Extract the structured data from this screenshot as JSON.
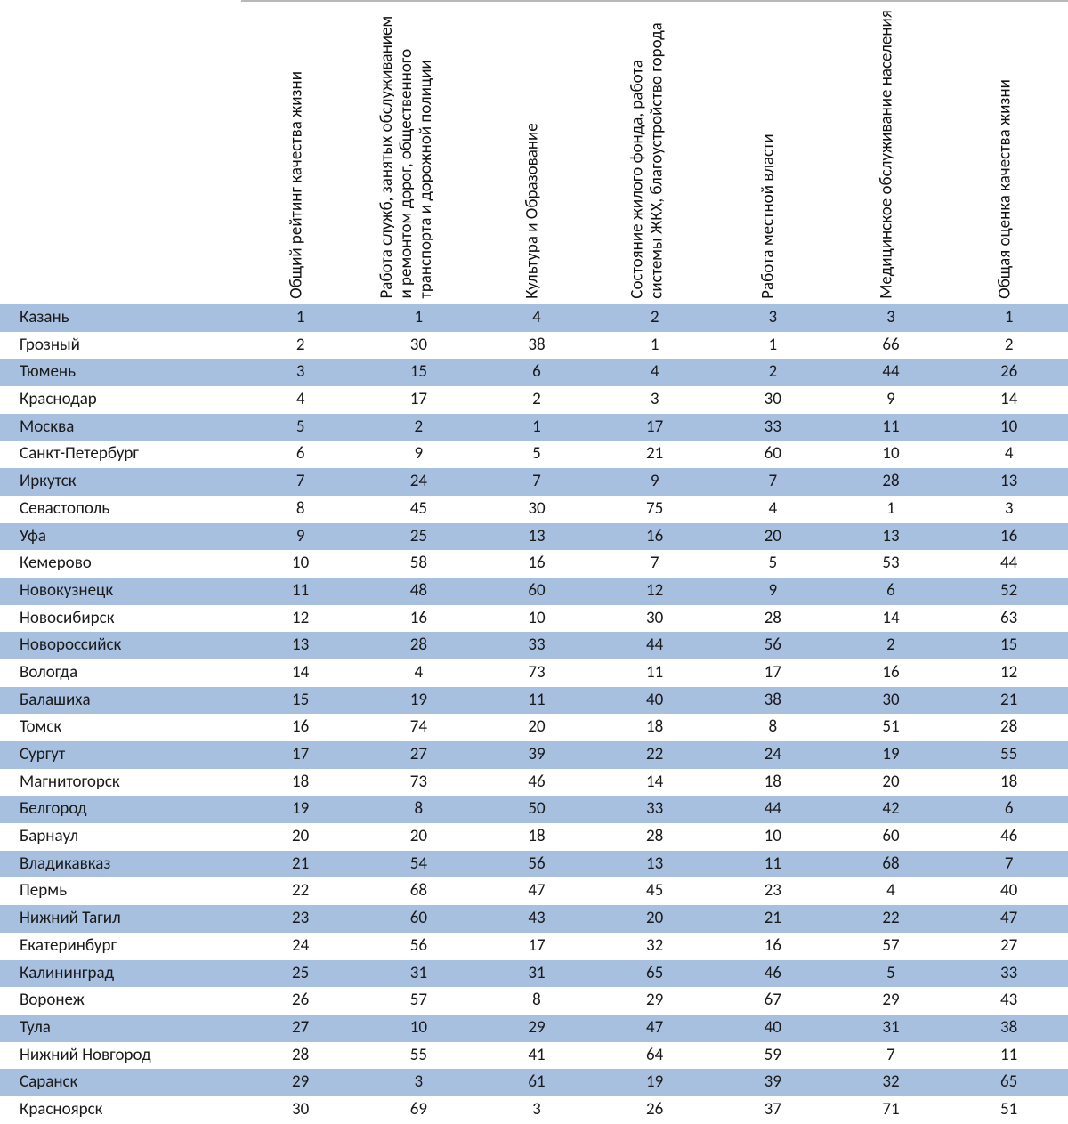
{
  "table": {
    "stripe_color_a": "#a8c0e0",
    "stripe_color_b": "#ffffff",
    "text_color": "#1a1a1a",
    "font_size_pt": 14,
    "columns": [
      "Общий рейтинг качества жизни",
      "Работа служб, занятых обслуживанием и ремонтом дорог, общественного транспорта и дорожной полиции",
      "Культура и Образование",
      "Состояние жилого фонда, работа системы ЖКХ, благоустройство города",
      "Работа местной власти",
      "Медицинское обслуживание населения",
      "Общая оценка качества жизни"
    ],
    "rows": [
      {
        "name": "Казань",
        "values": [
          1,
          1,
          4,
          2,
          3,
          3,
          1
        ]
      },
      {
        "name": "Грозный",
        "values": [
          2,
          30,
          38,
          1,
          1,
          66,
          2
        ]
      },
      {
        "name": "Тюмень",
        "values": [
          3,
          15,
          6,
          4,
          2,
          44,
          26
        ]
      },
      {
        "name": "Краснодар",
        "values": [
          4,
          17,
          2,
          3,
          30,
          9,
          14
        ]
      },
      {
        "name": "Москва",
        "values": [
          5,
          2,
          1,
          17,
          33,
          11,
          10
        ]
      },
      {
        "name": "Санкт-Петербург",
        "values": [
          6,
          9,
          5,
          21,
          60,
          10,
          4
        ]
      },
      {
        "name": "Иркутск",
        "values": [
          7,
          24,
          7,
          9,
          7,
          28,
          13
        ]
      },
      {
        "name": "Севастополь",
        "values": [
          8,
          45,
          30,
          75,
          4,
          1,
          3
        ]
      },
      {
        "name": "Уфа",
        "values": [
          9,
          25,
          13,
          16,
          20,
          13,
          16
        ]
      },
      {
        "name": "Кемерово",
        "values": [
          10,
          58,
          16,
          7,
          5,
          53,
          44
        ]
      },
      {
        "name": "Новокузнецк",
        "values": [
          11,
          48,
          60,
          12,
          9,
          6,
          52
        ]
      },
      {
        "name": "Новосибирск",
        "values": [
          12,
          16,
          10,
          30,
          28,
          14,
          63
        ]
      },
      {
        "name": "Новороссийск",
        "values": [
          13,
          28,
          33,
          44,
          56,
          2,
          15
        ]
      },
      {
        "name": "Вологда",
        "values": [
          14,
          4,
          73,
          11,
          17,
          16,
          12
        ]
      },
      {
        "name": "Балашиха",
        "values": [
          15,
          19,
          11,
          40,
          38,
          30,
          21
        ]
      },
      {
        "name": "Томск",
        "values": [
          16,
          74,
          20,
          18,
          8,
          51,
          28
        ]
      },
      {
        "name": "Сургут",
        "values": [
          17,
          27,
          39,
          22,
          24,
          19,
          55
        ]
      },
      {
        "name": "Магнитогорск",
        "values": [
          18,
          73,
          46,
          14,
          18,
          20,
          18
        ]
      },
      {
        "name": "Белгород",
        "values": [
          19,
          8,
          50,
          33,
          44,
          42,
          6
        ]
      },
      {
        "name": "Барнаул",
        "values": [
          20,
          20,
          18,
          28,
          10,
          60,
          46
        ]
      },
      {
        "name": "Владикавказ",
        "values": [
          21,
          54,
          56,
          13,
          11,
          68,
          7
        ]
      },
      {
        "name": "Пермь",
        "values": [
          22,
          68,
          47,
          45,
          23,
          4,
          40
        ]
      },
      {
        "name": "Нижний Тагил",
        "values": [
          23,
          60,
          43,
          20,
          21,
          22,
          47
        ]
      },
      {
        "name": "Екатеринбург",
        "values": [
          24,
          56,
          17,
          32,
          16,
          57,
          27
        ]
      },
      {
        "name": "Калининград",
        "values": [
          25,
          31,
          31,
          65,
          46,
          5,
          33
        ]
      },
      {
        "name": "Воронеж",
        "values": [
          26,
          57,
          8,
          29,
          67,
          29,
          43
        ]
      },
      {
        "name": "Тула",
        "values": [
          27,
          10,
          29,
          47,
          40,
          31,
          38
        ]
      },
      {
        "name": "Нижний Новгород",
        "values": [
          28,
          55,
          41,
          64,
          59,
          7,
          11
        ]
      },
      {
        "name": "Саранск",
        "values": [
          29,
          3,
          61,
          19,
          39,
          32,
          65
        ]
      },
      {
        "name": "Красноярск",
        "values": [
          30,
          69,
          3,
          26,
          37,
          71,
          51
        ]
      }
    ]
  }
}
